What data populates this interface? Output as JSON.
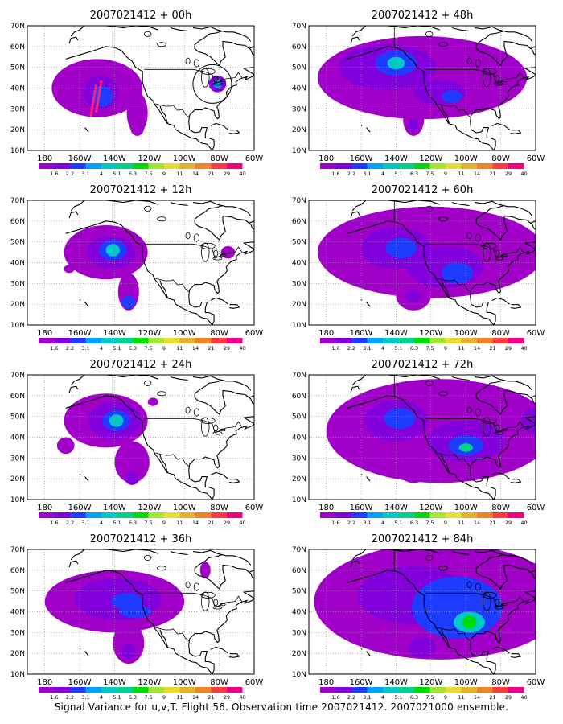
{
  "caption": "Signal Variance for u,v,T. Flight 56. Observation time 2007021412. 2007021000 ensemble.",
  "axes": {
    "lon_labels": [
      "180",
      "160W",
      "140W",
      "120W",
      "100W",
      "80W",
      "60W"
    ],
    "lat_labels": [
      "10N",
      "20N",
      "30N",
      "40N",
      "50N",
      "60N",
      "70N"
    ]
  },
  "colorbar": {
    "labels": [
      "1.6",
      "2.2",
      "3.1",
      "4",
      "5.1",
      "6.3",
      "7.5",
      "9",
      "11",
      "14",
      "21",
      "29",
      "40"
    ],
    "colors": [
      "#a000c8",
      "#8200dc",
      "#1e3cff",
      "#00a0ff",
      "#00c8c8",
      "#00d28c",
      "#00dc00",
      "#a0e632",
      "#e6dc32",
      "#e6af2d",
      "#f08228",
      "#fa3c3c",
      "#f00082"
    ]
  },
  "background_color": "#ffffff",
  "panels": [
    {
      "title": "2007021412 + 00h",
      "observation_track": true,
      "blobs": [
        [
          -150,
          40,
          26,
          14,
          1
        ],
        [
          -148,
          38,
          10,
          8,
          2
        ],
        [
          -147,
          36,
          6,
          5,
          3
        ],
        [
          -127,
          28,
          6,
          10,
          1
        ],
        [
          -127,
          21,
          4,
          4,
          1
        ],
        [
          -81,
          42,
          5,
          4,
          2
        ],
        [
          -81,
          42,
          2.5,
          2,
          4
        ]
      ]
    },
    {
      "title": "2007021412 + 12h",
      "blobs": [
        [
          -145,
          45,
          24,
          13,
          1
        ],
        [
          -142,
          45,
          14,
          8,
          2
        ],
        [
          -141,
          46,
          8,
          5,
          3
        ],
        [
          -141,
          46,
          4,
          3,
          5
        ],
        [
          -132,
          26,
          6,
          9,
          1
        ],
        [
          -132,
          21,
          4,
          3,
          3
        ],
        [
          -166,
          37,
          3,
          2,
          1
        ],
        [
          -75,
          45,
          4,
          3,
          1
        ]
      ]
    },
    {
      "title": "2007021412 + 24h",
      "blobs": [
        [
          -145,
          48,
          24,
          13,
          1
        ],
        [
          -140,
          48,
          15,
          9,
          2
        ],
        [
          -139,
          48,
          8,
          5,
          3
        ],
        [
          -139,
          48,
          4,
          3,
          5
        ],
        [
          -130,
          28,
          10,
          10,
          1
        ],
        [
          -130,
          20,
          4,
          3,
          2
        ],
        [
          -168,
          36,
          5,
          4,
          1
        ],
        [
          -118,
          57,
          3,
          2,
          1
        ]
      ]
    },
    {
      "title": "2007021412 + 36h",
      "blobs": [
        [
          -140,
          45,
          40,
          15,
          1
        ],
        [
          -138,
          46,
          25,
          10,
          2
        ],
        [
          -133,
          45,
          9,
          4,
          3
        ],
        [
          -128,
          40,
          9,
          3,
          3
        ],
        [
          -132,
          25,
          9,
          10,
          1
        ],
        [
          -132,
          21,
          4,
          4,
          2
        ],
        [
          -172,
          43,
          4,
          4,
          1
        ],
        [
          -88,
          60,
          3,
          4,
          1
        ]
      ]
    },
    {
      "title": "2007021412 + 48h",
      "blobs": [
        [
          -125,
          45,
          60,
          20,
          1
        ],
        [
          -145,
          50,
          28,
          11,
          2
        ],
        [
          -140,
          52,
          12,
          6,
          3
        ],
        [
          -140,
          52,
          5,
          3,
          5
        ],
        [
          -115,
          38,
          15,
          6,
          2
        ],
        [
          -108,
          36,
          6,
          3,
          3
        ],
        [
          -130,
          25,
          6,
          8,
          1
        ],
        [
          -130,
          22,
          3,
          3,
          2
        ]
      ]
    },
    {
      "title": "2007021412 + 60h",
      "blobs": [
        [
          -120,
          45,
          65,
          22,
          1
        ],
        [
          -140,
          47,
          20,
          10,
          2
        ],
        [
          -137,
          47,
          9,
          5,
          3
        ],
        [
          -112,
          38,
          22,
          10,
          2
        ],
        [
          -105,
          35,
          9,
          5,
          3
        ],
        [
          -130,
          24,
          10,
          7,
          1
        ],
        [
          -130,
          24,
          5,
          3,
          2
        ]
      ]
    },
    {
      "title": "2007021412 + 72h",
      "blobs": [
        [
          -115,
          43,
          65,
          25,
          1
        ],
        [
          -140,
          48,
          18,
          10,
          2
        ],
        [
          -138,
          49,
          9,
          5,
          3
        ],
        [
          -100,
          38,
          22,
          10,
          2
        ],
        [
          -100,
          36,
          10,
          5,
          3
        ],
        [
          -100,
          35,
          4,
          2,
          6
        ],
        [
          -130,
          23,
          8,
          5,
          1
        ],
        [
          -62,
          48,
          6,
          6,
          2
        ]
      ]
    },
    {
      "title": "2007021412 + 84h",
      "blobs": [
        [
          -115,
          45,
          72,
          28,
          1
        ],
        [
          -130,
          48,
          32,
          14,
          2
        ],
        [
          -105,
          42,
          26,
          15,
          3
        ],
        [
          -98,
          35,
          9,
          5,
          5
        ],
        [
          -98,
          35,
          4,
          3,
          7
        ],
        [
          -125,
          23,
          8,
          5,
          2
        ],
        [
          -168,
          36,
          5,
          3,
          1
        ]
      ]
    }
  ]
}
